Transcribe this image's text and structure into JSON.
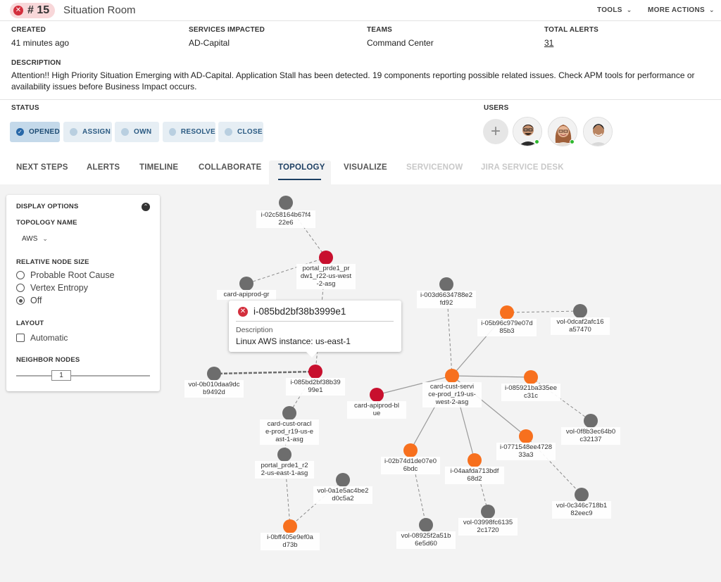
{
  "header": {
    "situation_number": "# 15",
    "title": "Situation Room",
    "tools_label": "TOOLS",
    "more_actions_label": "MORE ACTIONS"
  },
  "meta": {
    "created_label": "CREATED",
    "created_value": "41 minutes ago",
    "services_label": "SERVICES IMPACTED",
    "services_value": "AD-Capital",
    "teams_label": "TEAMS",
    "teams_value": "Command Center",
    "alerts_label": "TOTAL ALERTS",
    "alerts_value": "31",
    "description_label": "DESCRIPTION",
    "description_value": "Attention!! High Priority Situation Emerging with AD-Capital. Application Stall has been detected. 19 components reporting possible related issues. Check APM tools for performance or availability issues before Business Impact occurs."
  },
  "status": {
    "label": "STATUS",
    "buttons": [
      "OPENED",
      "ASSIGN",
      "OWN",
      "RESOLVE",
      "CLOSE"
    ],
    "active": "OPENED"
  },
  "users": {
    "label": "USERS",
    "count": 3
  },
  "tabs": [
    {
      "label": "NEXT STEPS",
      "state": "normal"
    },
    {
      "label": "ALERTS",
      "state": "normal"
    },
    {
      "label": "TIMELINE",
      "state": "normal"
    },
    {
      "label": "COLLABORATE",
      "state": "normal"
    },
    {
      "label": "TOPOLOGY",
      "state": "active"
    },
    {
      "label": "VISUALIZE",
      "state": "normal"
    },
    {
      "label": "SERVICENOW",
      "state": "disabled"
    },
    {
      "label": "JIRA SERVICE DESK",
      "state": "disabled"
    }
  ],
  "display_options": {
    "title": "DISPLAY OPTIONS",
    "topology_name_label": "TOPOLOGY NAME",
    "topology_name_value": "AWS",
    "relative_node_size_label": "RELATIVE NODE SIZE",
    "size_options": [
      "Probable Root Cause",
      "Vertex Entropy",
      "Off"
    ],
    "size_selected": "Off",
    "layout_label": "LAYOUT",
    "layout_option": "Automatic",
    "layout_checked": false,
    "neighbor_nodes_label": "NEIGHBOR NODES",
    "neighbor_nodes_value": "1"
  },
  "tooltip": {
    "title": "i-085bd2bf38b3999e1",
    "description_label": "Description",
    "description_value": "Linux AWS instance: us-east-1"
  },
  "colors": {
    "critical": "#c8102e",
    "major": "#f7701e",
    "normal": "#6d6d6d",
    "accent": "#1d3f63"
  },
  "topology": {
    "nodes": [
      {
        "label": [
          "i-02c58164b67f4",
          "22e6"
        ],
        "status": "normal"
      },
      {
        "label": [
          "portal_prde1_pr",
          "dw1_r22-us-west",
          "-2-asg"
        ],
        "status": "critical"
      },
      {
        "label": [
          "card-apiprod-gr"
        ],
        "status": "normal"
      },
      {
        "label": [
          "vol-0b010daa9dc",
          "b9492d"
        ],
        "status": "normal"
      },
      {
        "label": [
          "i-085bd2bf38b39",
          "99e1"
        ],
        "status": "critical"
      },
      {
        "label": [
          "card-cust-oracl",
          "e-prod_r19-us-e",
          "ast-1-asg"
        ],
        "status": "normal"
      },
      {
        "label": [
          "portal_prde1_r2",
          "2-us-east-1-asg"
        ],
        "status": "normal"
      },
      {
        "label": [
          "vol-0a1e5ac4be2",
          "d0c5a2"
        ],
        "status": "normal"
      },
      {
        "label": [
          "i-0bff405e9ef0a",
          "d73b"
        ],
        "status": "major"
      },
      {
        "label": [
          "i-003d6634788e2",
          "fd92"
        ],
        "status": "normal"
      },
      {
        "label": [
          "i-05b96c979e07d",
          "85b3"
        ],
        "status": "major"
      },
      {
        "label": [
          "vol-0dcaf2afc16",
          "a57470"
        ],
        "status": "normal"
      },
      {
        "label": [
          "card-cust-servi",
          "ce-prod_r19-us-",
          "west-2-asg"
        ],
        "status": "major"
      },
      {
        "label": [
          "card-apiprod-bl",
          "ue"
        ],
        "status": "critical"
      },
      {
        "label": [
          "i-085921ba335ee",
          "c31c"
        ],
        "status": "major"
      },
      {
        "label": [
          "vol-0f8b3ec64b0",
          "c32137"
        ],
        "status": "normal"
      },
      {
        "label": [
          "i-0771548ee4728",
          "33a3"
        ],
        "status": "major"
      },
      {
        "label": [
          "vol-0c346c718b1",
          "82eec9"
        ],
        "status": "normal"
      },
      {
        "label": [
          "i-02b74d1de07e0",
          "6bdc"
        ],
        "status": "major"
      },
      {
        "label": [
          "vol-08925f2a51b",
          "6e5d60"
        ],
        "status": "normal"
      },
      {
        "label": [
          "i-04aafda713bdf",
          "68d2"
        ],
        "status": "major"
      },
      {
        "label": [
          "vol-03998fc6135",
          "2c1720"
        ],
        "status": "normal"
      }
    ],
    "edges": [
      [
        0,
        1,
        "dashed"
      ],
      [
        1,
        2,
        "dashed"
      ],
      [
        1,
        4,
        "dashed"
      ],
      [
        3,
        4,
        "heavy"
      ],
      [
        4,
        5,
        "dashed"
      ],
      [
        5,
        6,
        "dashed"
      ],
      [
        6,
        8,
        "dashed"
      ],
      [
        7,
        8,
        "dashed"
      ],
      [
        9,
        12,
        "dashed"
      ],
      [
        10,
        11,
        "dashed"
      ],
      [
        10,
        12,
        "solid"
      ],
      [
        12,
        13,
        "solid"
      ],
      [
        12,
        14,
        "solid"
      ],
      [
        14,
        15,
        "dashed"
      ],
      [
        12,
        16,
        "solid"
      ],
      [
        16,
        17,
        "dashed"
      ],
      [
        12,
        18,
        "solid"
      ],
      [
        18,
        19,
        "dashed"
      ],
      [
        12,
        20,
        "solid"
      ],
      [
        20,
        21,
        "dashed"
      ]
    ]
  }
}
